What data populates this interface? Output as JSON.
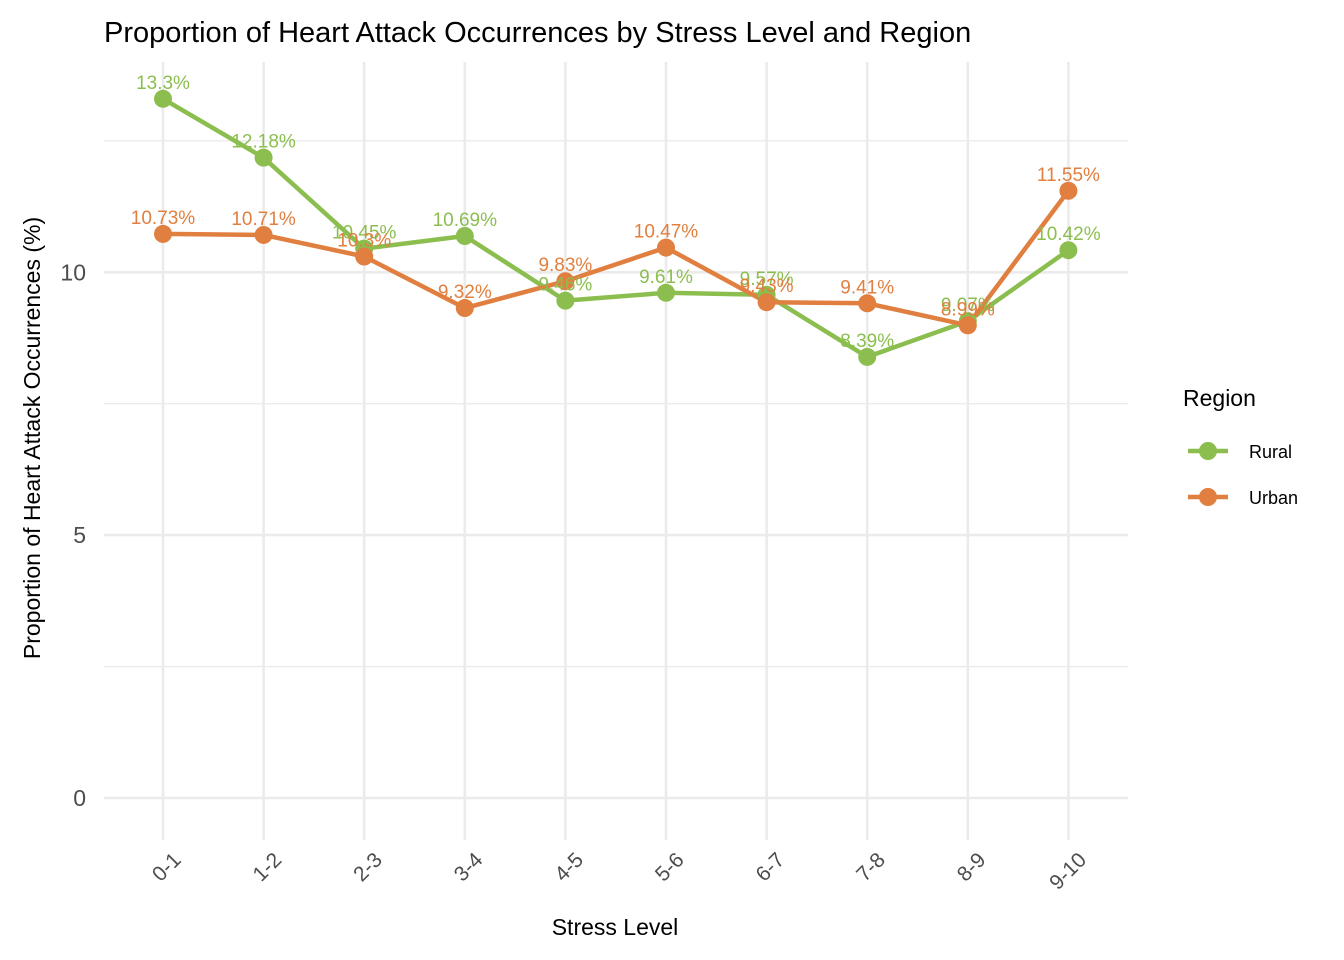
{
  "chart_data": {
    "type": "line",
    "title": "Proportion of Heart Attack Occurrences by Stress Level and Region",
    "xlabel": "Stress Level",
    "ylabel": "Proportion of Heart Attack Occurrences (%)",
    "categories": [
      "0-1",
      "1-2",
      "2-3",
      "3-4",
      "4-5",
      "5-6",
      "6-7",
      "7-8",
      "8-9",
      "9-10"
    ],
    "yticks": [
      "0",
      "5",
      "10"
    ],
    "ylim": [
      -0.8,
      14
    ],
    "grid": true,
    "legend": {
      "title": "Region",
      "placement": "right"
    },
    "series": [
      {
        "name": "Rural",
        "color": "#8BBE4F",
        "values": [
          13.3,
          12.18,
          10.45,
          10.69,
          9.46,
          9.61,
          9.57,
          8.39,
          9.07,
          10.42
        ],
        "labels": [
          "13.3%",
          "12.18%",
          "10.45%",
          "10.69%",
          "9.46%",
          "9.61%",
          "9.57%",
          "8.39%",
          "9.07%",
          "10.42%"
        ]
      },
      {
        "name": "Urban",
        "color": "#E07F3F",
        "values": [
          10.73,
          10.71,
          10.3,
          9.32,
          9.83,
          10.47,
          9.43,
          9.41,
          8.99,
          11.55
        ],
        "labels": [
          "10.73%",
          "10.71%",
          "10.3%",
          "9.32%",
          "9.83%",
          "10.47%",
          "9.43%",
          "9.41%",
          "8.99%",
          "11.55%"
        ]
      }
    ]
  }
}
